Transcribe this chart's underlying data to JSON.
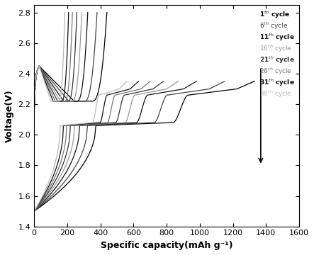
{
  "xlabel": "Specific capacity(mAh g⁻¹)",
  "ylabel": "Voltage(V)",
  "xlim": [
    0,
    1600
  ],
  "ylim": [
    1.4,
    2.85
  ],
  "xticks": [
    0,
    200,
    400,
    600,
    800,
    1000,
    1200,
    1400,
    1600
  ],
  "yticks": [
    1.4,
    1.6,
    1.8,
    2.0,
    2.2,
    2.4,
    2.6,
    2.8
  ],
  "cycle_numbers": [
    1,
    6,
    11,
    16,
    21,
    26,
    31,
    36
  ],
  "max_discharge_caps": [
    1330,
    1150,
    980,
    870,
    780,
    700,
    630,
    560
  ],
  "line_colors": [
    "#000000",
    "#444444",
    "#111111",
    "#999999",
    "#333333",
    "#777777",
    "#111111",
    "#bbbbbb"
  ],
  "legend_labels": [
    "1$^{th}$ cycle",
    "6$^{th}$ cycle",
    "11$^{th}$ cycle",
    "16$^{th}$ cycle",
    "21$^{th}$ cycle",
    "26$^{th}$ cycle",
    "31$^{th}$ cycle",
    "36$^{th}$ cycle"
  ],
  "legend_bold": [
    true,
    false,
    true,
    false,
    true,
    false,
    true,
    false
  ]
}
